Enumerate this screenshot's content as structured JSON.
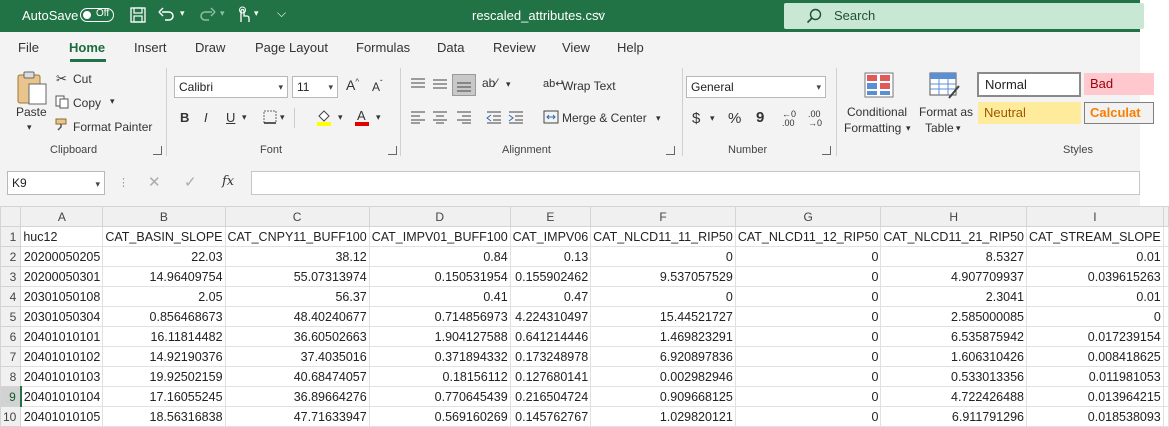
{
  "titlebar": {
    "autosave_label": "AutoSave",
    "autosave_state": "Off",
    "filename": "rescaled_attributes.csv",
    "search_placeholder": "Search",
    "icons": [
      "save-icon",
      "undo-icon",
      "redo-icon",
      "touch-mode-icon",
      "customize-qat-icon",
      "search-icon"
    ]
  },
  "menu": {
    "tabs": [
      "File",
      "Home",
      "Insert",
      "Draw",
      "Page Layout",
      "Formulas",
      "Data",
      "Review",
      "View",
      "Help"
    ],
    "active": "Home"
  },
  "ribbon": {
    "clipboard": {
      "paste": "Paste",
      "cut": "Cut",
      "copy": "Copy",
      "format_painter": "Format Painter",
      "label": "Clipboard"
    },
    "font": {
      "family": "Calibri",
      "size": "11",
      "bold": "B",
      "italic": "I",
      "underline": "U",
      "label": "Font"
    },
    "alignment": {
      "wrap_text": "Wrap Text",
      "merge_center": "Merge & Center",
      "label": "Alignment"
    },
    "number": {
      "format": "General",
      "currency": "$",
      "percent": "%",
      "comma": "9",
      "label": "Number"
    },
    "styles": {
      "conditional_1": "Conditional",
      "conditional_2": "Formatting",
      "format_table_1": "Format as",
      "format_table_2": "Table",
      "normal": "Normal",
      "bad": "Bad",
      "neutral": "Neutral",
      "calculation": "Calculat",
      "label": "Styles",
      "colors": {
        "normal_border": "#8a8a8a",
        "bad_bg": "#ffc7ce",
        "bad_fg": "#9c0006",
        "neutral_bg": "#ffeb9c",
        "neutral_fg": "#9c5700",
        "calc_fg": "#fa7d00"
      }
    }
  },
  "formula_bar": {
    "name_box": "K9",
    "fx": "fx",
    "value": ""
  },
  "sheet": {
    "columns": [
      "A",
      "B",
      "C",
      "D",
      "E",
      "F",
      "G",
      "H",
      "I"
    ],
    "selected_column": "K",
    "selected_row": "9",
    "rows": [
      {
        "n": "1",
        "cells": [
          "huc12",
          "CAT_BASIN_SLOPE",
          "CAT_CNPY11_BUFF100",
          "CAT_IMPV01_BUFF100",
          "CAT_IMPV06",
          "CAT_NLCD11_11_RIP50",
          "CAT_NLCD11_12_RIP50",
          "CAT_NLCD11_21_RIP50",
          "CAT_STREAM_SLOPE"
        ]
      },
      {
        "n": "2",
        "cells": [
          "20200050205",
          "22.03",
          "38.12",
          "0.84",
          "0.13",
          "0",
          "0",
          "8.5327",
          "0.01"
        ]
      },
      {
        "n": "3",
        "cells": [
          "20200050301",
          "14.96409754",
          "55.07313974",
          "0.150531954",
          "0.155902462",
          "9.537057529",
          "0",
          "4.907709937",
          "0.039615263"
        ]
      },
      {
        "n": "4",
        "cells": [
          "20301050108",
          "2.05",
          "56.37",
          "0.41",
          "0.47",
          "0",
          "0",
          "2.3041",
          "0.01"
        ]
      },
      {
        "n": "5",
        "cells": [
          "20301050304",
          "0.856468673",
          "48.40240677",
          "0.714856973",
          "4.224310497",
          "15.44521727",
          "0",
          "2.585000085",
          "0"
        ]
      },
      {
        "n": "6",
        "cells": [
          "20401010101",
          "16.11814482",
          "36.60502663",
          "1.904127588",
          "0.641214446",
          "1.469823291",
          "0",
          "6.535875942",
          "0.017239154"
        ]
      },
      {
        "n": "7",
        "cells": [
          "20401010102",
          "14.92190376",
          "37.4035016",
          "0.371894332",
          "0.173248978",
          "6.920897836",
          "0",
          "1.606310426",
          "0.008418625"
        ]
      },
      {
        "n": "8",
        "cells": [
          "20401010103",
          "19.92502159",
          "40.68474057",
          "0.18156112",
          "0.127680141",
          "0.002982946",
          "0",
          "0.533013356",
          "0.011981053"
        ]
      },
      {
        "n": "9",
        "cells": [
          "20401010104",
          "17.16055245",
          "36.89664276",
          "0.770645439",
          "0.216504724",
          "0.909668125",
          "0",
          "4.722426488",
          "0.013964215"
        ]
      },
      {
        "n": "10",
        "cells": [
          "20401010105",
          "18.56316838",
          "47.71633947",
          "0.569160269",
          "0.145762767",
          "1.029820121",
          "0",
          "6.911791296",
          "0.018538093"
        ]
      }
    ]
  }
}
